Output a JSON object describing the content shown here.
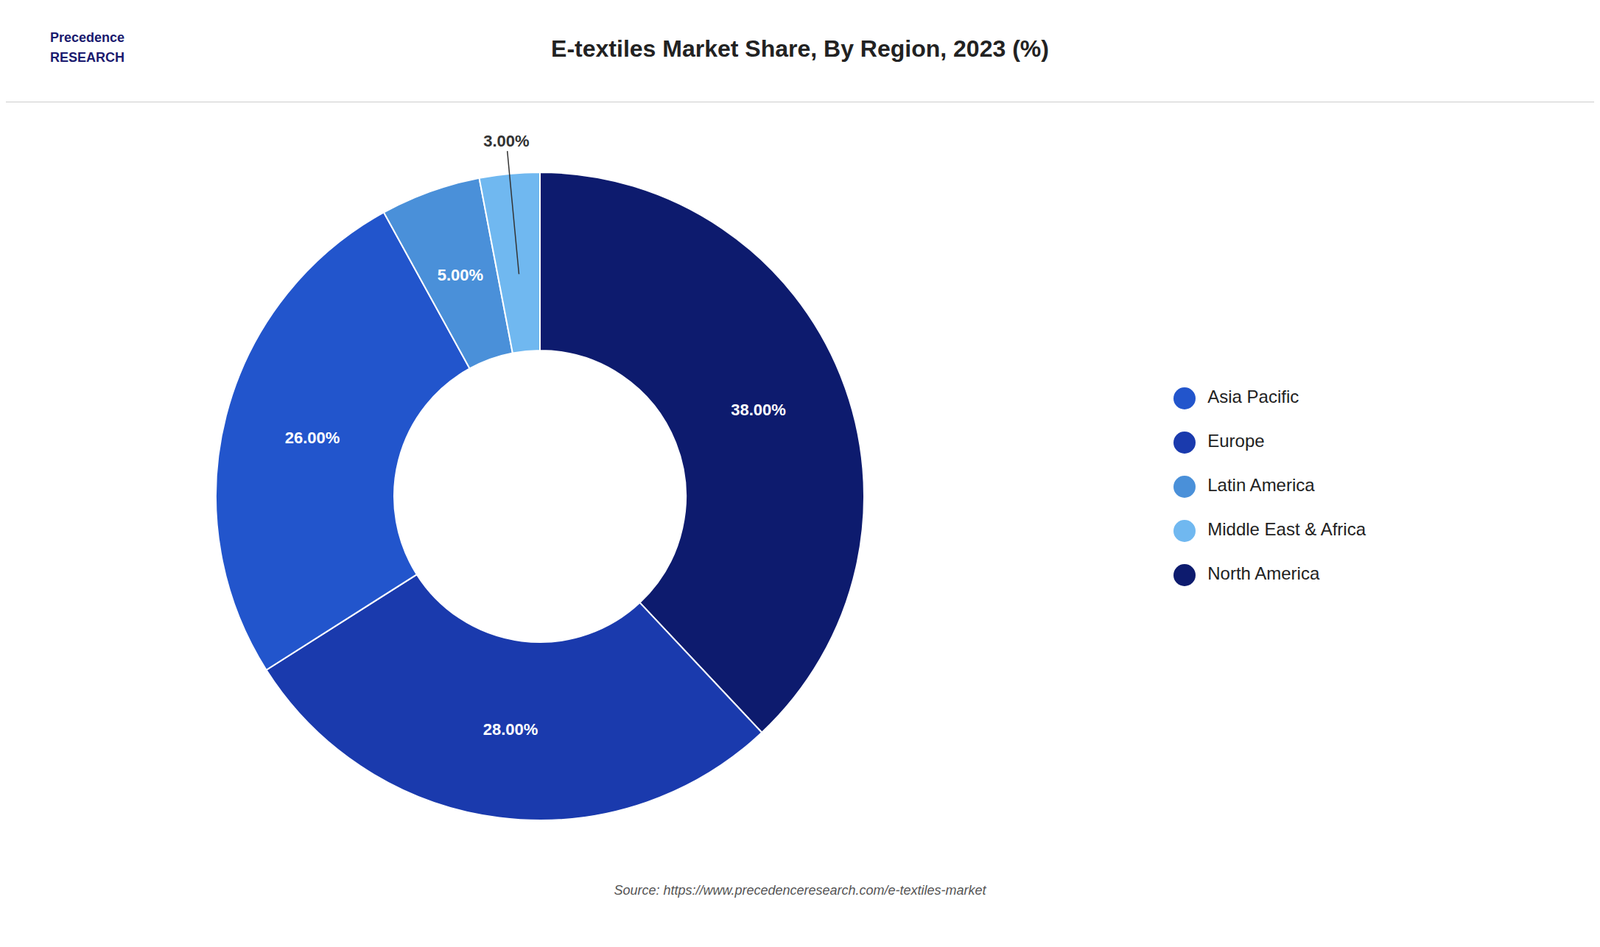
{
  "chart_data": {
    "type": "pie",
    "title": "E-textiles Market Share, By Region, 2023 (%)",
    "categories": [
      "North America",
      "Europe",
      "Asia Pacific",
      "Latin America",
      "Middle East & Africa"
    ],
    "values": [
      38.0,
      28.0,
      26.0,
      5.0,
      3.0
    ],
    "value_labels": [
      "38.00%",
      "28.00%",
      "26.00%",
      "5.00%",
      "3.00%"
    ],
    "colors": [
      "#0d1b6e",
      "#1a3aad",
      "#2255cc",
      "#4a90d9",
      "#70b8f0"
    ],
    "data_labels": true,
    "legend": "right",
    "annotations": [
      "Source: https://www.precedenceresearch.com/e-textiles-market",
      "Precedence\nRESEARCH"
    ]
  }
}
